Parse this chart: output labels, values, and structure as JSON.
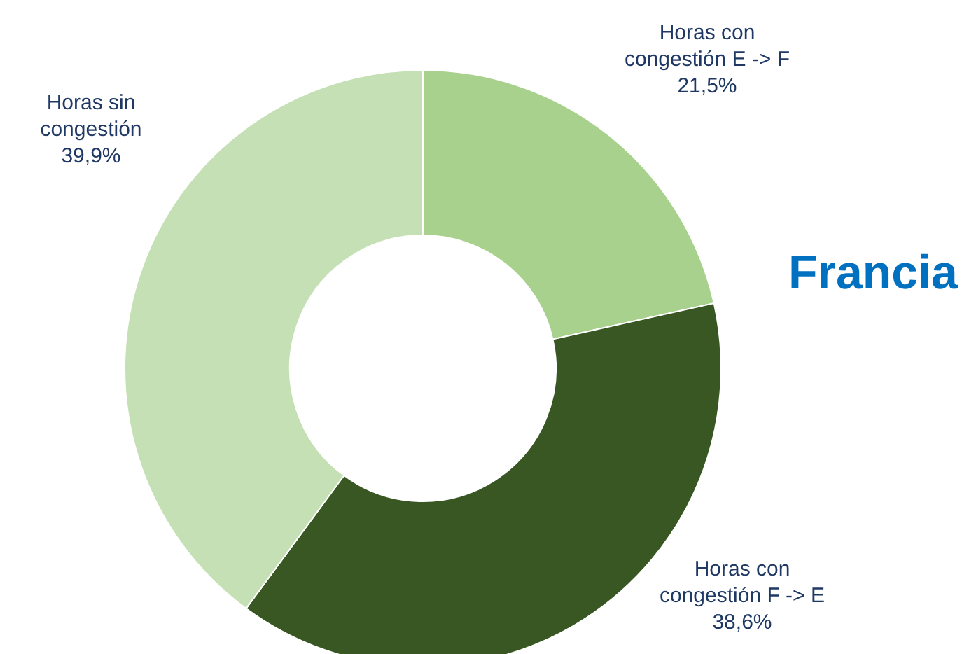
{
  "chart_data": {
    "type": "donut",
    "title": "Francia",
    "categories": [
      "Horas con congestión E -> F",
      "Horas con congestión F -> E",
      "Horas sin congestión"
    ],
    "values": [
      21.5,
      38.6,
      39.9
    ],
    "value_labels": [
      "21,5%",
      "38,6%",
      "39,9%"
    ],
    "colors": [
      "#a9d18e",
      "#385723",
      "#c5e0b4"
    ]
  }
}
